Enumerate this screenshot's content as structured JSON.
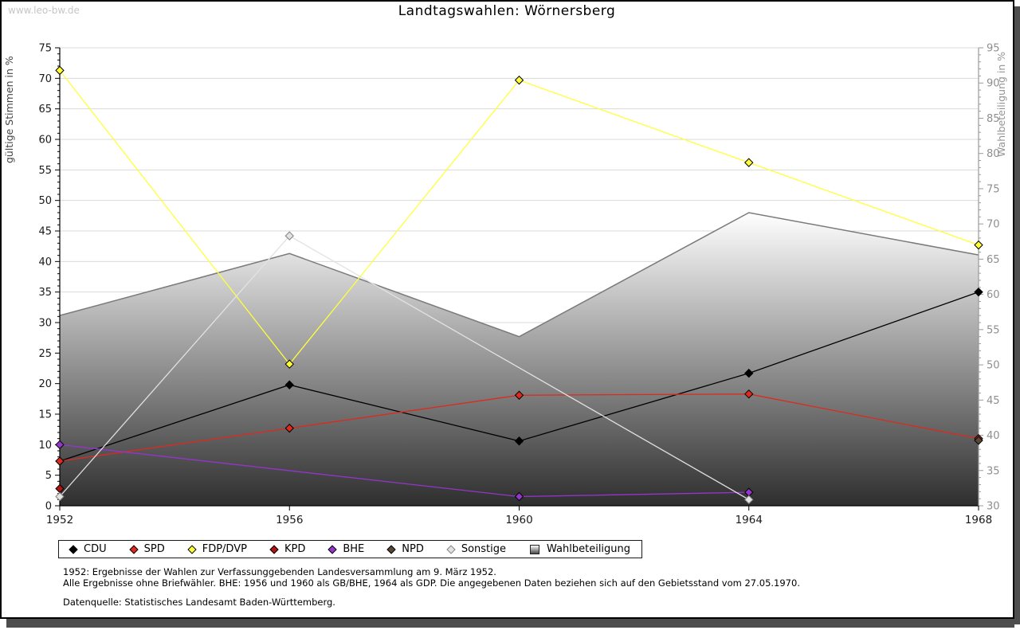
{
  "page": {
    "watermark": "www.leo-bw.de",
    "footnotes": {
      "line1": "1952: Ergebnisse der Wahlen zur Verfassunggebenden Landesversammlung am 9. März 1952.",
      "line2": "Alle Ergebnisse ohne Briefwähler. BHE: 1956 und 1960 als GB/BHE, 1964 als GDP. Die angegebenen Daten beziehen sich auf den Gebietsstand vom 27.05.1970.",
      "line3": "Datenquelle: Statistisches Landesamt Baden-Württemberg."
    }
  },
  "chart_data": {
    "type": "line",
    "title": "Landtagswahlen: Wörnersberg",
    "x": [
      1952,
      1956,
      1960,
      1964,
      1968
    ],
    "left_axis": {
      "label": "gültige Stimmen in %",
      "min": 0,
      "max": 75,
      "step": 5,
      "tick_color": "#1a1a1a",
      "label_color": "#444444"
    },
    "right_axis": {
      "label": "Wahlbeteiligung in %",
      "min": 30,
      "max": 95,
      "step": 5,
      "tick_color": "#8e8e8e",
      "label_color": "#949494"
    },
    "grid": true,
    "legend_position": "bottom",
    "series": [
      {
        "name": "CDU",
        "kind": "line",
        "axis": "left",
        "color": "#000000",
        "edge": "#000000",
        "points": [
          [
            1952,
            7.3
          ],
          [
            1956,
            19.8
          ],
          [
            1960,
            10.6
          ],
          [
            1964,
            21.7
          ],
          [
            1968,
            35.0
          ]
        ]
      },
      {
        "name": "SPD",
        "kind": "line",
        "axis": "left",
        "color": "#dc2a1e",
        "edge": "#000000",
        "points": [
          [
            1952,
            7.3
          ],
          [
            1956,
            12.7
          ],
          [
            1960,
            18.1
          ],
          [
            1964,
            18.3
          ],
          [
            1968,
            11.0
          ]
        ]
      },
      {
        "name": "FDP/DVP",
        "kind": "line",
        "axis": "left",
        "color": "#ffff3c",
        "edge": "#000000",
        "points": [
          [
            1952,
            71.3
          ],
          [
            1956,
            23.2
          ],
          [
            1960,
            69.7
          ],
          [
            1964,
            56.2
          ],
          [
            1968,
            42.7
          ]
        ]
      },
      {
        "name": "KPD",
        "kind": "line",
        "axis": "left",
        "color": "#ae1412",
        "edge": "#000000",
        "points": [
          [
            1952,
            2.8
          ]
        ]
      },
      {
        "name": "BHE",
        "kind": "line",
        "axis": "left",
        "color": "#9435cb",
        "edge": "#000000",
        "points": [
          [
            1952,
            10.0
          ],
          [
            1960,
            1.5
          ],
          [
            1964,
            2.2
          ]
        ]
      },
      {
        "name": "NPD",
        "kind": "line",
        "axis": "left",
        "color": "#5a4736",
        "edge": "#000000",
        "points": [
          [
            1968,
            10.7
          ]
        ]
      },
      {
        "name": "Sonstige",
        "kind": "line",
        "axis": "left",
        "color": "#e2e2e2",
        "edge": "#828282",
        "points": [
          [
            1952,
            1.5
          ],
          [
            1956,
            44.2
          ],
          [
            1964,
            1.0
          ]
        ]
      },
      {
        "name": "Wahlbeteiligung",
        "kind": "area",
        "axis": "right",
        "color": "#9a9a9a",
        "edge": "#7a7a7a",
        "points": [
          [
            1952,
            57.0
          ],
          [
            1956,
            65.8
          ],
          [
            1960,
            54.0
          ],
          [
            1964,
            71.6
          ],
          [
            1968,
            65.6
          ]
        ]
      }
    ],
    "area_gradient": {
      "top": "#ffffff",
      "bottom": "#2e2e2e"
    },
    "grid_color": "#d9d9d9"
  }
}
